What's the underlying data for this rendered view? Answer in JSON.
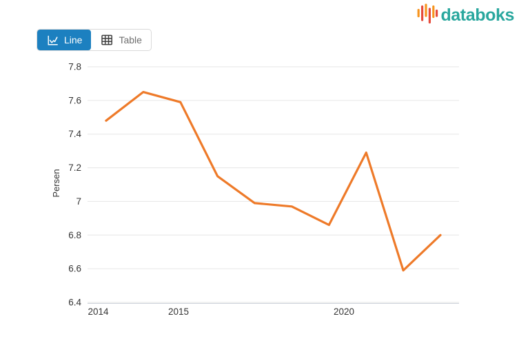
{
  "toolbar": {
    "line_label": "Line",
    "table_label": "Table"
  },
  "logo": {
    "text": "databoks"
  },
  "colors": {
    "accent_blue": "#1C80C0",
    "logo_teal": "#29A79E",
    "logo_orange": "#F6941E",
    "logo_red": "#E64A3A",
    "series_orange": "#EE7A29",
    "gridline": "#E6E6E6",
    "axis_line": "#CCD1DA",
    "tick_text": "#333333"
  },
  "chart_data": {
    "type": "line",
    "title": "",
    "xlabel": "",
    "ylabel": "Persen",
    "ylim": [
      6.4,
      7.8
    ],
    "y_tick_values": [
      7.8,
      7.6,
      7.4,
      7.2,
      7.0,
      6.8,
      6.6,
      6.4
    ],
    "y_tick_labels": [
      "7.8",
      "7.6",
      "7.4",
      "7.2",
      "7",
      "6.8",
      "6.6",
      "6.4"
    ],
    "x_tick_labels": [
      "2014",
      "2015",
      "2020"
    ],
    "values": [
      7.48,
      7.65,
      7.59,
      7.15,
      6.99,
      6.97,
      6.86,
      7.29,
      6.59,
      6.8
    ],
    "grid": true,
    "legend": "none",
    "series_name": "Persen"
  }
}
